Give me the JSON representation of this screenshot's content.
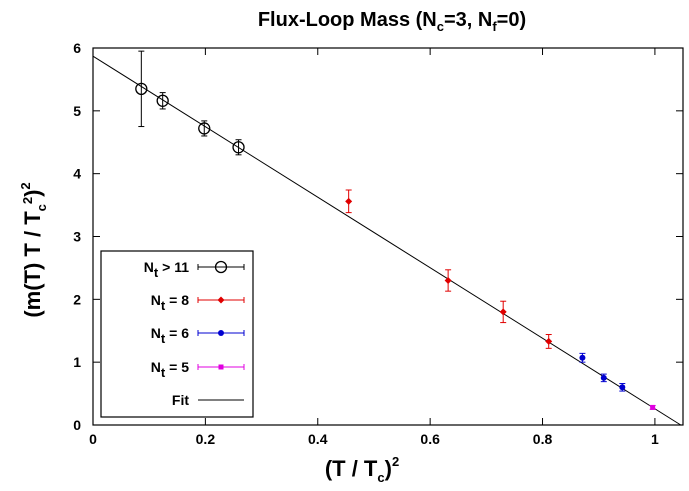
{
  "chart_data": {
    "type": "scatter",
    "title": {
      "main": "Flux-Loop Mass (N",
      "s1": "c",
      "m1": "=3, N",
      "s2": "f",
      "m2": "=0)"
    },
    "xlabel": {
      "a": "(T / T",
      "sub": "c",
      "b": ")",
      "sup": "2"
    },
    "ylabel": {
      "a": "(m(T) T / T",
      "sub": "c",
      "sup1": "2",
      "b": ")",
      "sup2": "2"
    },
    "xlim": [
      0,
      1.05
    ],
    "ylim": [
      0,
      6
    ],
    "xticks": [
      "0",
      "0.2",
      "0.4",
      "0.6",
      "0.8",
      "1"
    ],
    "yticks": [
      "0",
      "1",
      "2",
      "3",
      "4",
      "5",
      "6"
    ],
    "legend_position": "bottom-left",
    "series": [
      {
        "name": {
          "a": "N",
          "sub": "t",
          "b": " > 11"
        },
        "color": "#000000",
        "marker": "open-circle",
        "points": [
          {
            "x": 0.086,
            "y": 5.35,
            "err": 0.6
          },
          {
            "x": 0.124,
            "y": 5.16,
            "err": 0.13
          },
          {
            "x": 0.198,
            "y": 4.72,
            "err": 0.12
          },
          {
            "x": 0.259,
            "y": 4.42,
            "err": 0.12
          }
        ]
      },
      {
        "name": {
          "a": "N",
          "sub": "t",
          "b": " = 8"
        },
        "color": "#e00000",
        "marker": "diamond",
        "points": [
          {
            "x": 0.455,
            "y": 3.56,
            "err": 0.18
          },
          {
            "x": 0.632,
            "y": 2.3,
            "err": 0.17
          },
          {
            "x": 0.73,
            "y": 1.8,
            "err": 0.17
          },
          {
            "x": 0.811,
            "y": 1.33,
            "err": 0.11
          }
        ]
      },
      {
        "name": {
          "a": "N",
          "sub": "t",
          "b": " = 6"
        },
        "color": "#0000d0",
        "marker": "filled-circle",
        "points": [
          {
            "x": 0.871,
            "y": 1.07,
            "err": 0.07
          },
          {
            "x": 0.909,
            "y": 0.75,
            "err": 0.06
          },
          {
            "x": 0.942,
            "y": 0.6,
            "err": 0.06
          }
        ]
      },
      {
        "name": {
          "a": "N",
          "sub": "t",
          "b": " = 5"
        },
        "color": "#e000e0",
        "marker": "square",
        "points": [
          {
            "x": 0.996,
            "y": 0.28,
            "err": 0.03
          }
        ]
      }
    ],
    "fit": {
      "name": "Fit",
      "color": "#000000",
      "x0": 0,
      "y0": 5.87,
      "x1": 1.046,
      "y1": 0
    }
  }
}
